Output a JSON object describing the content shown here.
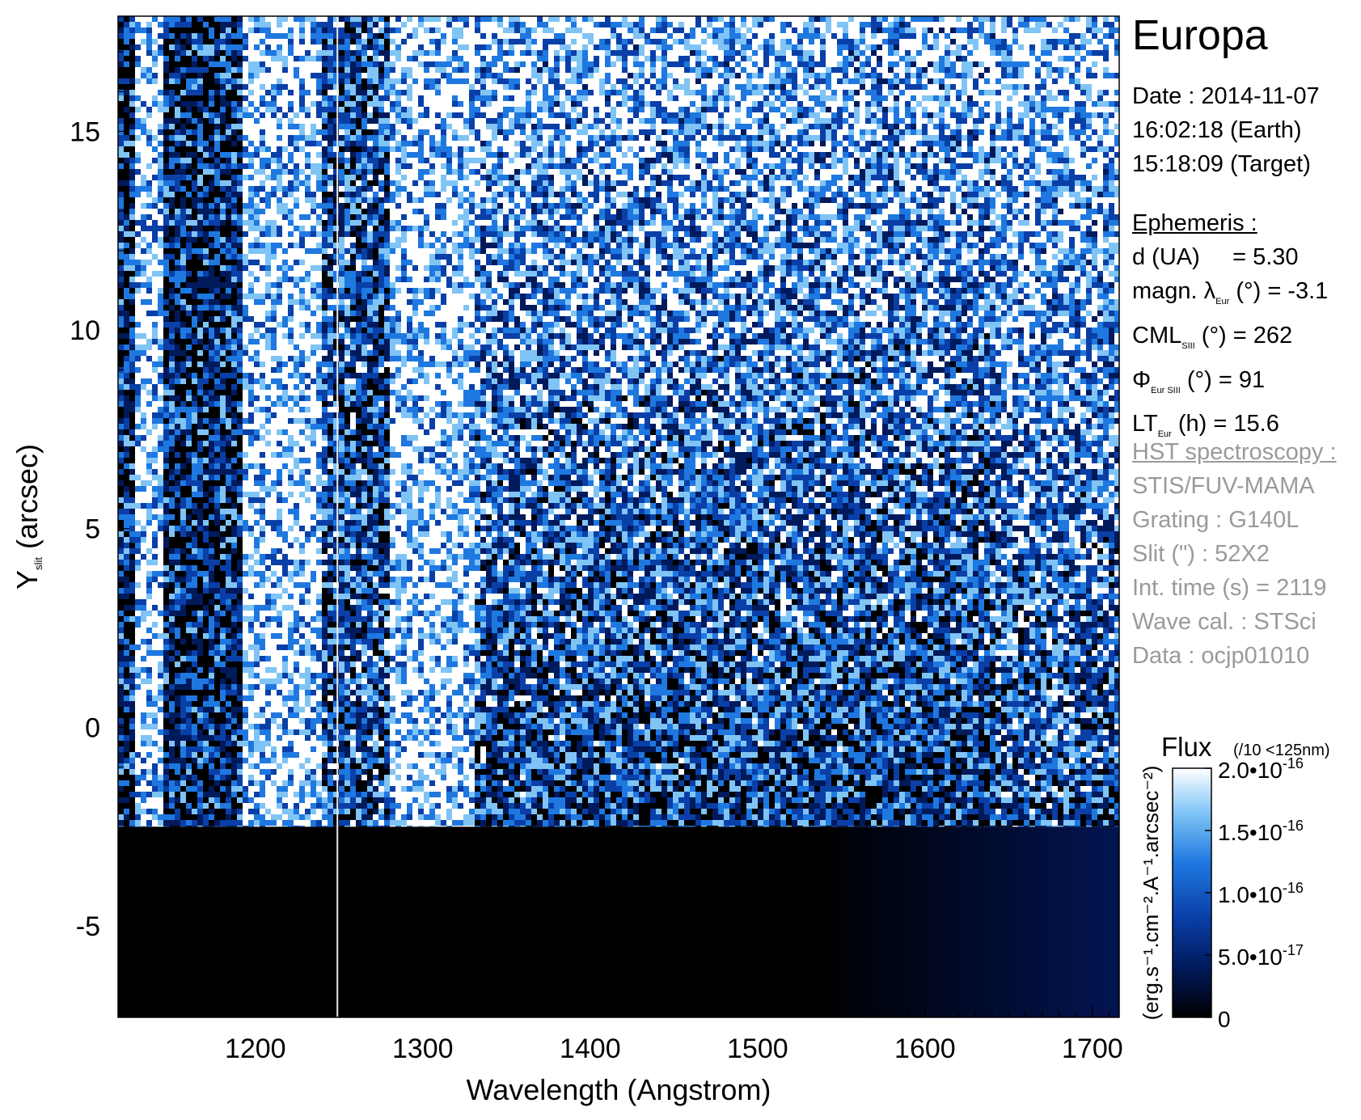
{
  "chart_data": {
    "type": "heatmap",
    "xlabel": "Wavelength (Angstrom)",
    "ylabel_main": "Y",
    "ylabel_sub": "slit",
    "ylabel_tail": " (arcsec)",
    "xlim": [
      1118,
      1716
    ],
    "ylim": [
      -7.3,
      17.9
    ],
    "x_ticks": [
      1200,
      1300,
      1400,
      1500,
      1600,
      1700
    ],
    "y_ticks": [
      -5,
      0,
      5,
      10,
      15
    ],
    "x_tick_labels": [
      "1200",
      "1300",
      "1400",
      "1500",
      "1600",
      "1700"
    ],
    "y_tick_labels": [
      "-5",
      "0",
      "5",
      "10",
      "15"
    ],
    "x_minor_step": 10,
    "y_minor_step": 1,
    "slit_lower_edge_arcsec": -2.5,
    "slit_divider_angstrom": 1249,
    "bright_bands_angstrom": [
      [
        1128,
        1145
      ],
      [
        1190,
        1238
      ],
      [
        1278,
        1330
      ]
    ],
    "colorbar": {
      "title": "Flux",
      "note": "(/10 <125nm)",
      "unit_label": "(erg.s⁻¹.cm⁻².A⁻¹.arcsec⁻²)",
      "range": [
        0,
        2e-16
      ],
      "ticks": [
        {
          "value": 2e-16,
          "mant": "2.0•10",
          "exp": "-16"
        },
        {
          "value": 1.5e-16,
          "mant": "1.5•10",
          "exp": "-16"
        },
        {
          "value": 1e-16,
          "mant": "1.0•10",
          "exp": "-16"
        },
        {
          "value": 5e-17,
          "mant": "5.0•10",
          "exp": "-17"
        },
        {
          "value": 0,
          "mant": "0",
          "exp": ""
        }
      ],
      "colors": [
        "#000000",
        "#001a5c",
        "#0a3fa8",
        "#1e78e0",
        "#7fc4f5",
        "#ffffff"
      ]
    }
  },
  "info": {
    "target": "Europa",
    "date_line": "Date : 2014-11-07",
    "earth_time": "16:02:18 (Earth)",
    "target_time": "15:18:09 (Target)",
    "ephemeris_header": "Ephemeris :",
    "d_label": "d (UA)",
    "d_value": "= 5.30",
    "magn_pre": "magn. λ",
    "magn_sub": "Eur",
    "magn_post": " (°)  = -3.1",
    "cml_pre": "CML",
    "cml_sub": "SIII",
    "cml_post": " (°) = 262",
    "phi_pre": "Φ",
    "phi_sub": "Eur SIII",
    "phi_post": " (°) = 91",
    "lt_pre": "LT",
    "lt_sub": "Eur",
    "lt_post": " (h) = 15.6",
    "hst_header": "HST spectroscopy :",
    "instrument": "STIS/FUV-MAMA",
    "grating": "Grating : G140L",
    "slit": "Slit (\") : 52X2",
    "int_time": "Int. time (s) = 2119",
    "wave_cal": "Wave cal. : STSci",
    "data_id": "Data : ocjp01010"
  }
}
